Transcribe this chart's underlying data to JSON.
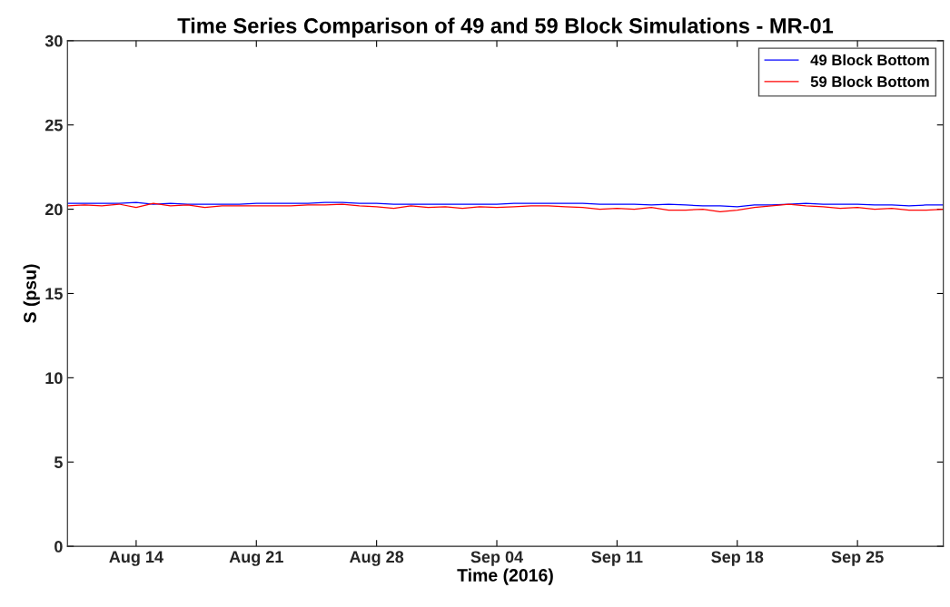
{
  "chart_data": {
    "type": "line",
    "title": "Time Series Comparison of 49 and 59 Block Simulations - MR-01",
    "xlabel": "Time (2016)",
    "ylabel": "S (psu)",
    "x": [
      "2016-08-10",
      "2016-08-11",
      "2016-08-12",
      "2016-08-13",
      "2016-08-14",
      "2016-08-15",
      "2016-08-16",
      "2016-08-17",
      "2016-08-18",
      "2016-08-19",
      "2016-08-20",
      "2016-08-21",
      "2016-08-22",
      "2016-08-23",
      "2016-08-24",
      "2016-08-25",
      "2016-08-26",
      "2016-08-27",
      "2016-08-28",
      "2016-08-29",
      "2016-08-30",
      "2016-08-31",
      "2016-09-01",
      "2016-09-02",
      "2016-09-03",
      "2016-09-04",
      "2016-09-05",
      "2016-09-06",
      "2016-09-07",
      "2016-09-08",
      "2016-09-09",
      "2016-09-10",
      "2016-09-11",
      "2016-09-12",
      "2016-09-13",
      "2016-09-14",
      "2016-09-15",
      "2016-09-16",
      "2016-09-17",
      "2016-09-18",
      "2016-09-19",
      "2016-09-20",
      "2016-09-21",
      "2016-09-22",
      "2016-09-23",
      "2016-09-24",
      "2016-09-25",
      "2016-09-26",
      "2016-09-27",
      "2016-09-28",
      "2016-09-29",
      "2016-09-30"
    ],
    "series": [
      {
        "name": "49 Block Bottom",
        "color": "#0000ff",
        "values": [
          20.35,
          20.35,
          20.35,
          20.35,
          20.4,
          20.3,
          20.35,
          20.3,
          20.3,
          20.3,
          20.3,
          20.35,
          20.35,
          20.35,
          20.35,
          20.4,
          20.4,
          20.35,
          20.35,
          20.3,
          20.3,
          20.3,
          20.3,
          20.3,
          20.3,
          20.3,
          20.35,
          20.35,
          20.35,
          20.35,
          20.35,
          20.3,
          20.3,
          20.3,
          20.25,
          20.3,
          20.25,
          20.2,
          20.2,
          20.15,
          20.25,
          20.25,
          20.3,
          20.35,
          20.3,
          20.3,
          20.3,
          20.25,
          20.25,
          20.2,
          20.25,
          20.25
        ]
      },
      {
        "name": "59 Block Bottom",
        "color": "#ff0000",
        "values": [
          20.2,
          20.25,
          20.2,
          20.3,
          20.1,
          20.35,
          20.2,
          20.25,
          20.1,
          20.2,
          20.2,
          20.2,
          20.2,
          20.2,
          20.25,
          20.25,
          20.3,
          20.2,
          20.15,
          20.05,
          20.2,
          20.1,
          20.15,
          20.05,
          20.15,
          20.1,
          20.15,
          20.2,
          20.2,
          20.15,
          20.1,
          20.0,
          20.05,
          20.0,
          20.1,
          19.95,
          19.95,
          20.0,
          19.85,
          19.95,
          20.1,
          20.2,
          20.3,
          20.2,
          20.15,
          20.05,
          20.1,
          20.0,
          20.05,
          19.95,
          19.95,
          20.0
        ]
      }
    ],
    "xlim": [
      "2016-08-10",
      "2016-09-30"
    ],
    "xticks": [
      {
        "value": "2016-08-14",
        "label": "Aug 14"
      },
      {
        "value": "2016-08-21",
        "label": "Aug 21"
      },
      {
        "value": "2016-08-28",
        "label": "Aug 28"
      },
      {
        "value": "2016-09-04",
        "label": "Sep 04"
      },
      {
        "value": "2016-09-11",
        "label": "Sep 11"
      },
      {
        "value": "2016-09-18",
        "label": "Sep 18"
      },
      {
        "value": "2016-09-25",
        "label": "Sep 25"
      }
    ],
    "ylim": [
      0,
      30
    ],
    "yticks": [
      0,
      5,
      10,
      15,
      20,
      25,
      30
    ],
    "grid": false,
    "legend": "top right",
    "marker": "none",
    "line_style": "solid"
  }
}
